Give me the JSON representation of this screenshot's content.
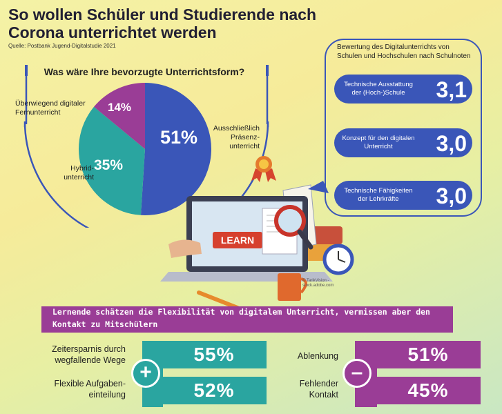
{
  "title": "So wollen Schüler und Studierende nach Corona unterrichtet werden",
  "source": "Quelle: Postbank Jugend-Digitalstudie 2021",
  "pie": {
    "question": "Was wäre Ihre bevorzugte Unterrichtsform?",
    "slices": [
      {
        "label": "Ausschließlich Präsenzunterricht",
        "label_lines": [
          "Ausschließlich",
          "Präsenz-",
          "unterricht"
        ],
        "value_label": "51%"
      },
      {
        "label": "Hybridunterricht",
        "label_lines": [
          "Hybrid-",
          "unterricht"
        ],
        "value_label": "35%"
      },
      {
        "label": "Überwiegend digitaler Fernunterricht",
        "label_lines": [
          "Überwiegend digitaler",
          "Fernunterricht"
        ],
        "value_label": "14%"
      }
    ]
  },
  "rating": {
    "intro": "Bewertung des Digitalunterrichts von Schulen und Hochschulen nach Schulnoten",
    "items": [
      {
        "label": "Technische Ausstattung der (Hoch-)Schule",
        "value": "3,1"
      },
      {
        "label": "Konzept für den digitalen Unterricht",
        "value": "3,0"
      },
      {
        "label": "Technische Fähigkeiten der Lehrkräfte",
        "value": "3,0"
      }
    ]
  },
  "illustration": {
    "screen_text": "LEARN",
    "credit": "© TarikVision - stock.adobe.com"
  },
  "banner": "Lernende schätzen die Flexibilität von digitalem Unterricht, vermissen aber den Kontakt zu Mitschülern",
  "pros": {
    "sign": "+",
    "items": [
      {
        "label": "Zeitersparnis durch wegfallende Wege",
        "value_label": "55%"
      },
      {
        "label": "Flexible Aufgaben-einteilung",
        "value_label": "52%"
      }
    ]
  },
  "cons": {
    "sign": "–",
    "items": [
      {
        "label": "Ablenkung",
        "value_label": "51%"
      },
      {
        "label": "Fehlender Kontakt",
        "value_label": "45%"
      }
    ]
  },
  "colors": {
    "blue": "#3a56b8",
    "teal": "#2aa5a0",
    "purple": "#9a3d96"
  },
  "chart_data": [
    {
      "type": "pie",
      "title": "Was wäre Ihre bevorzugte Unterrichtsform?",
      "categories": [
        "Ausschließlich Präsenzunterricht",
        "Hybridunterricht",
        "Überwiegend digitaler Fernunterricht"
      ],
      "values": [
        51,
        35,
        14
      ],
      "colors": [
        "#3a56b8",
        "#2aa5a0",
        "#9a3d96"
      ]
    },
    {
      "type": "table",
      "title": "Bewertung des Digitalunterrichts von Schulen und Hochschulen nach Schulnoten",
      "categories": [
        "Technische Ausstattung der (Hoch-)Schule",
        "Konzept für den digitalen Unterricht",
        "Technische Fähigkeiten der Lehrkräfte"
      ],
      "values": [
        3.1,
        3.0,
        3.0
      ]
    },
    {
      "type": "table",
      "title": "Lernende schätzen die Flexibilität von digitalem Unterricht, vermissen aber den Kontakt zu Mitschülern",
      "series": [
        {
          "name": "+",
          "categories": [
            "Zeitersparnis durch wegfallende Wege",
            "Flexible Aufgaben-einteilung"
          ],
          "values": [
            55,
            52
          ]
        },
        {
          "name": "–",
          "categories": [
            "Ablenkung",
            "Fehlender Kontakt"
          ],
          "values": [
            51,
            45
          ]
        }
      ]
    }
  ]
}
